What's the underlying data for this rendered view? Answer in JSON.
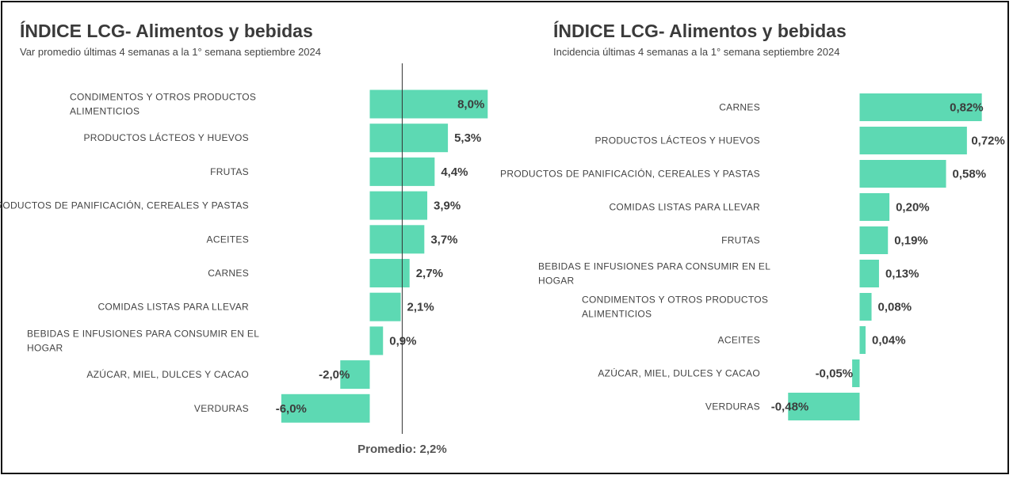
{
  "chart_data": [
    {
      "type": "bar",
      "orientation": "horizontal",
      "title": "ÍNDICE LCG- Alimentos y bebidas",
      "subtitle": "Var promedio  últimas 4 semanas a la 1° semana septiembre 2024",
      "categories": [
        [
          "CONDIMENTOS Y OTROS PRODUCTOS",
          "ALIMENTICIOS"
        ],
        [
          "PRODUCTOS LÁCTEOS Y HUEVOS"
        ],
        [
          "FRUTAS"
        ],
        [
          "PRODUCTOS DE PANIFICACIÓN, CEREALES Y PASTAS"
        ],
        [
          "ACEITES"
        ],
        [
          "CARNES"
        ],
        [
          "COMIDAS LISTAS PARA LLEVAR"
        ],
        [
          "BEBIDAS E INFUSIONES PARA CONSUMIR EN EL",
          "HOGAR"
        ],
        [
          "AZÚCAR, MIEL, DULCES Y CACAO"
        ],
        [
          "VERDURAS"
        ]
      ],
      "values": [
        8.0,
        5.3,
        4.4,
        3.9,
        3.7,
        2.7,
        2.1,
        0.9,
        -2.0,
        -6.0
      ],
      "value_labels": [
        "8,0%",
        "5,3%",
        "4,4%",
        "3,9%",
        "3,7%",
        "2,7%",
        "2,1%",
        "0,9%",
        "-2,0%",
        "-6,0%"
      ],
      "reference_line": {
        "value": 2.2,
        "label": "Promedio: 2,2%"
      },
      "bar_color": "#5DD9B3"
    },
    {
      "type": "bar",
      "orientation": "horizontal",
      "title": "ÍNDICE LCG- Alimentos y bebidas",
      "subtitle": "Incidencia últimas 4 semanas a la 1° semana septiembre 2024",
      "categories": [
        [
          "CARNES"
        ],
        [
          "PRODUCTOS LÁCTEOS Y HUEVOS"
        ],
        [
          "PRODUCTOS DE PANIFICACIÓN, CEREALES Y PASTAS"
        ],
        [
          "COMIDAS LISTAS PARA LLEVAR"
        ],
        [
          "FRUTAS"
        ],
        [
          "BEBIDAS E INFUSIONES PARA CONSUMIR EN EL",
          "HOGAR"
        ],
        [
          "CONDIMENTOS Y OTROS PRODUCTOS",
          "ALIMENTICIOS"
        ],
        [
          "ACEITES"
        ],
        [
          "AZÚCAR, MIEL, DULCES Y CACAO"
        ],
        [
          "VERDURAS"
        ]
      ],
      "values": [
        0.82,
        0.72,
        0.58,
        0.2,
        0.19,
        0.13,
        0.08,
        0.04,
        -0.05,
        -0.48
      ],
      "value_labels": [
        "0,82%",
        "0,72%",
        "0,58%",
        "0,20%",
        "0,19%",
        "0,13%",
        "0,08%",
        "0,04%",
        "-0,05%",
        "-0,48%"
      ],
      "bar_color": "#5DD9B3"
    }
  ]
}
